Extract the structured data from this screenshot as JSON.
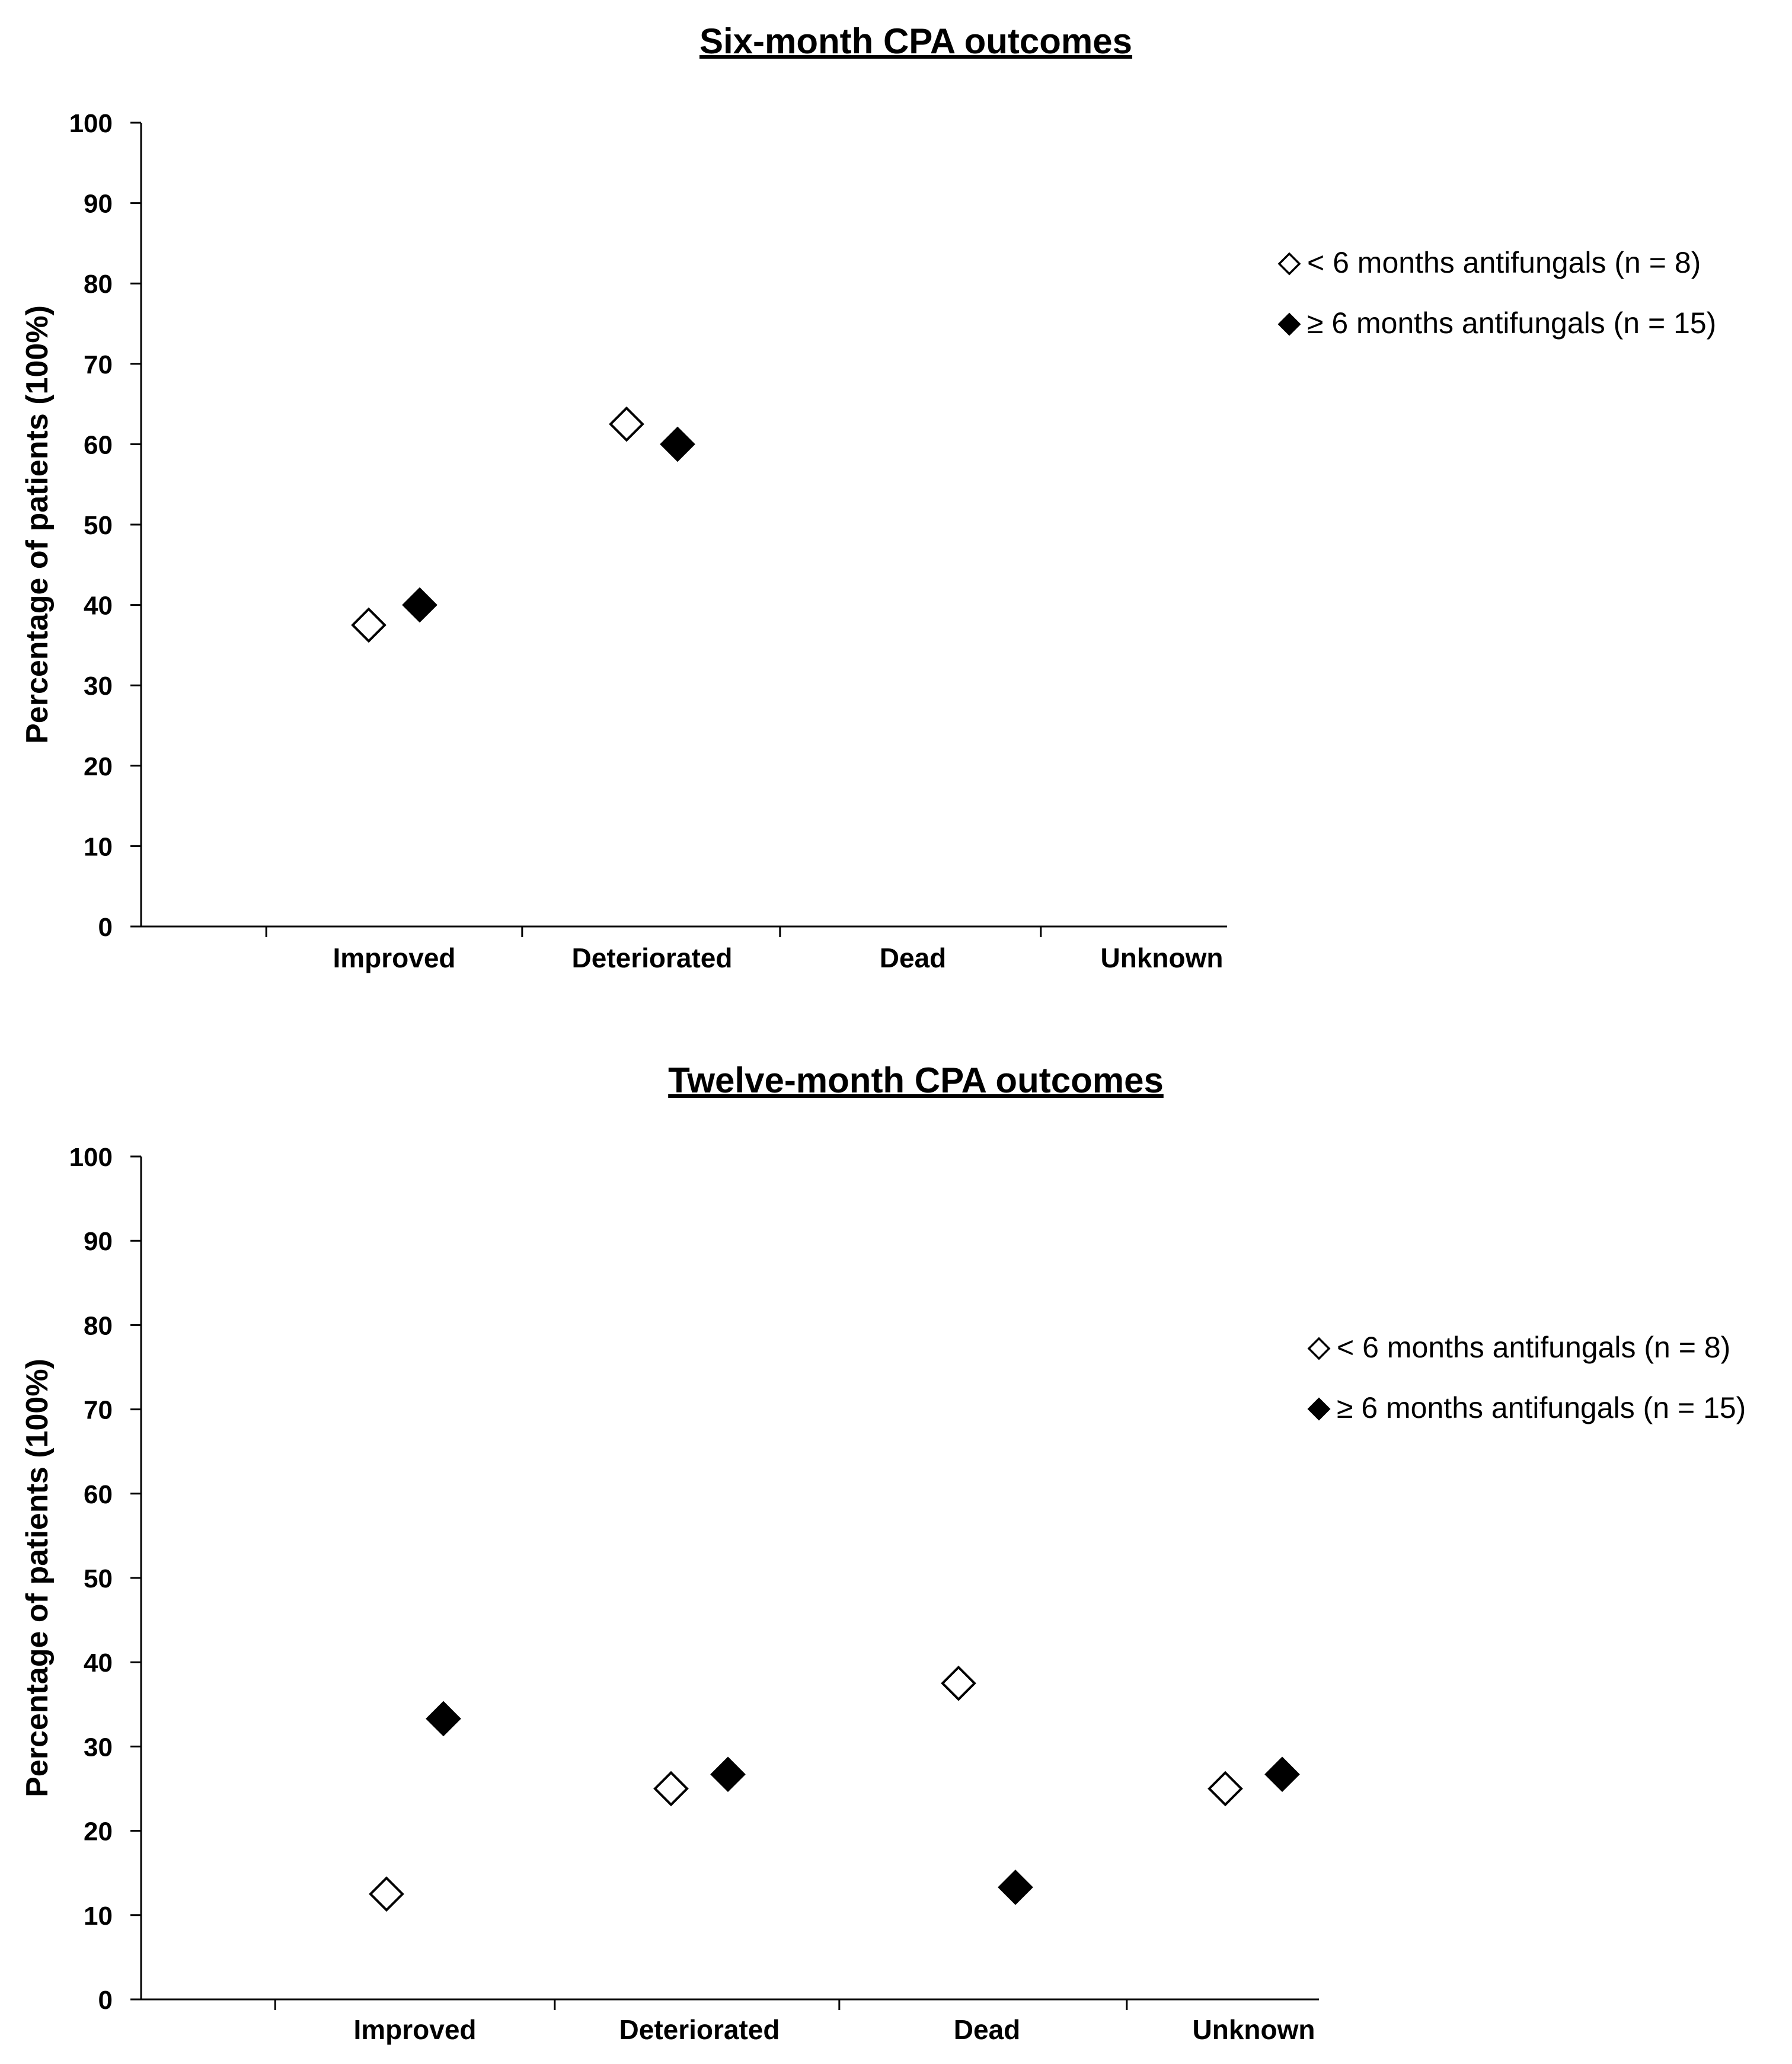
{
  "chart_data": [
    {
      "type": "scatter",
      "title": "Six-month CPA outcomes",
      "xlabel": "",
      "ylabel": "Percentage of patients (100%)",
      "ylim": [
        0,
        100
      ],
      "y_ticks": [
        0,
        10,
        20,
        30,
        40,
        50,
        60,
        70,
        80,
        90,
        100
      ],
      "y_tick_labels": [
        "0",
        "10",
        "20",
        "30",
        "40",
        "50",
        "60",
        "70",
        "80",
        "90",
        "100"
      ],
      "categories": [
        "Improved",
        "Deteriorated",
        "Dead",
        "Unknown"
      ],
      "legend_position": "right",
      "series": [
        {
          "name": "< 6 months antifungals (n = 8)",
          "marker": "open-diamond",
          "color": "#000000",
          "values": [
            37.5,
            62.5,
            null,
            null
          ]
        },
        {
          "name": "≥ 6 months antifungals (n = 15)",
          "marker": "filled-diamond",
          "color": "#000000",
          "values": [
            40,
            60,
            null,
            null
          ]
        }
      ]
    },
    {
      "type": "scatter",
      "title": "Twelve-month CPA outcomes",
      "xlabel": "",
      "ylabel": "Percentage of patients (100%)",
      "ylim": [
        0,
        100
      ],
      "y_ticks": [
        0,
        10,
        20,
        30,
        40,
        50,
        60,
        70,
        80,
        90,
        100
      ],
      "y_tick_labels": [
        "0",
        "10",
        "20",
        "30",
        "40",
        "50",
        "60",
        "70",
        "80",
        "90",
        "100"
      ],
      "categories": [
        "Improved",
        "Deteriorated",
        "Dead",
        "Unknown"
      ],
      "legend_position": "right",
      "series": [
        {
          "name": "< 6 months antifungals (n = 8)",
          "marker": "open-diamond",
          "color": "#000000",
          "values": [
            12.5,
            25,
            37.5,
            25
          ]
        },
        {
          "name": "≥ 6 months antifungals (n = 15)",
          "marker": "filled-diamond",
          "color": "#000000",
          "values": [
            33.3,
            26.7,
            13.3,
            26.7
          ]
        }
      ]
    }
  ]
}
